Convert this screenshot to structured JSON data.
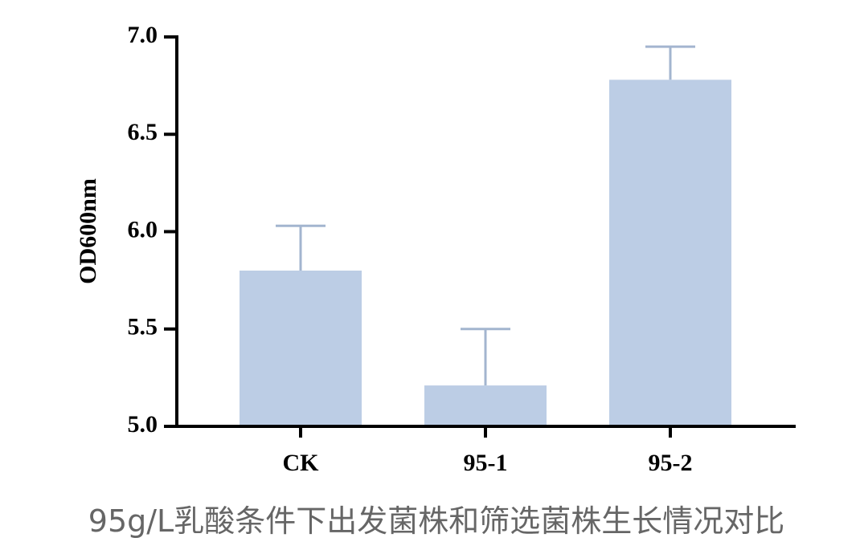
{
  "chart_data": {
    "type": "bar",
    "ylabel": "OD600nm",
    "caption": "95g/L乳酸条件下出发菌株和筛选菌株生长情况对比",
    "categories": [
      "CK",
      "95-1",
      "95-2"
    ],
    "values": [
      5.8,
      5.21,
      6.78
    ],
    "errors": [
      0.23,
      0.29,
      0.17
    ],
    "color": "#bccde5",
    "error_color": "#a3b5cf",
    "ylim": [
      5.0,
      7.0
    ],
    "yticks": [
      {
        "value": 5,
        "label": "5.0"
      },
      {
        "value": 5.5,
        "label": "5.5"
      },
      {
        "value": 6,
        "label": "6.0"
      },
      {
        "value": 6.5,
        "label": "6.5"
      },
      {
        "value": 7,
        "label": "7.0"
      }
    ]
  }
}
